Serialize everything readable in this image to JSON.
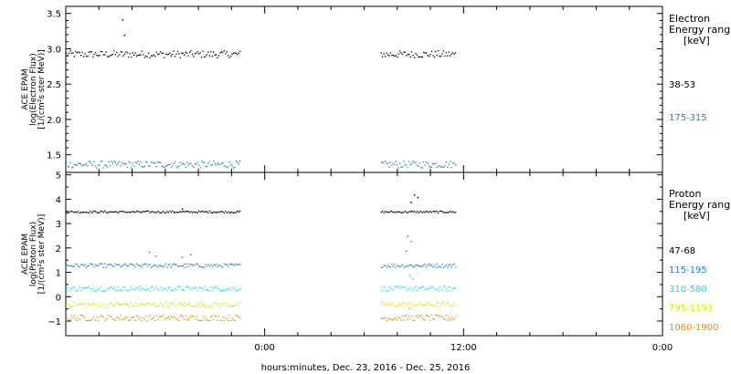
{
  "chart_data": [
    {
      "type": "scatter",
      "ylabel_lines": [
        "ACE EPAM",
        "log(Electron Flux)",
        "[1/(cm²s ster MeV)]"
      ],
      "ylim": [
        1.25,
        3.6
      ],
      "yticks": [
        "1.5",
        "2.0",
        "2.5",
        "3.0",
        "3.5"
      ],
      "legend_title": [
        "Electron",
        "Energy ranges",
        "[keV]"
      ],
      "series": [
        {
          "name": "38-53",
          "color": "#000000",
          "level": 2.93,
          "spread": 0.05,
          "spikes": [
            {
              "hours": -8.6,
              "value": 3.42
            },
            {
              "hours": -8.5,
              "value": 3.2
            }
          ]
        },
        {
          "name": "175-315",
          "color": "#1e7fd0",
          "level": 1.37,
          "spread": 0.05,
          "spikes": []
        }
      ]
    },
    {
      "type": "scatter",
      "ylabel_lines": [
        "ACE EPAM",
        "log(Proton Flux)",
        "[1/(cm²s ster MeV)]"
      ],
      "ylim": [
        -1.6,
        5.1
      ],
      "yticks": [
        "−1",
        "0",
        "1",
        "2",
        "3",
        "4",
        "5"
      ],
      "legend_title": [
        "Proton",
        "Energy ranges",
        "[keV]"
      ],
      "series": [
        {
          "name": "47-68",
          "color": "#000000",
          "level": 3.5,
          "spread": 0.04,
          "spikes": [
            {
              "hours": 9.0,
              "value": 4.2
            },
            {
              "hours": 9.2,
              "value": 4.1
            },
            {
              "hours": 8.8,
              "value": 3.9
            },
            {
              "hours": -5.0,
              "value": 3.62
            }
          ]
        },
        {
          "name": "115-195",
          "color": "#1e7fd0",
          "level": 1.3,
          "spread": 0.08,
          "spikes": [
            {
              "hours": 8.6,
              "value": 2.5
            },
            {
              "hours": 8.8,
              "value": 2.3
            },
            {
              "hours": 8.5,
              "value": 1.9
            },
            {
              "hours": -7.0,
              "value": 1.85
            },
            {
              "hours": -6.6,
              "value": 1.7
            },
            {
              "hours": -4.5,
              "value": 1.75
            },
            {
              "hours": -5.0,
              "value": 1.65
            }
          ]
        },
        {
          "name": "310-580",
          "color": "#29d6d6",
          "level": 0.35,
          "spread": 0.1,
          "spikes": [
            {
              "hours": 8.7,
              "value": 0.9
            },
            {
              "hours": 8.9,
              "value": 0.75
            }
          ]
        },
        {
          "name": "795-1193",
          "color": "#d8e000",
          "level": -0.3,
          "spread": 0.1,
          "spikes": []
        },
        {
          "name": "1060-1900",
          "color": "#ee8a00",
          "level": -0.85,
          "spread": 0.12,
          "spikes": [
            {
              "hours": 8.7,
              "value": -0.45
            }
          ]
        }
      ]
    }
  ],
  "x_axis": {
    "label": "hours:minutes, Dec. 23, 2016 - Dec. 25, 2016",
    "range_hours": [
      -12,
      24
    ],
    "tick_labels": [
      {
        "hours": 0,
        "label": "0:00"
      },
      {
        "hours": 12,
        "label": "12:00"
      },
      {
        "hours": 24,
        "label": "0:00"
      }
    ],
    "data_segments": [
      [
        -12,
        -1.5
      ],
      [
        7,
        11.5
      ]
    ]
  }
}
